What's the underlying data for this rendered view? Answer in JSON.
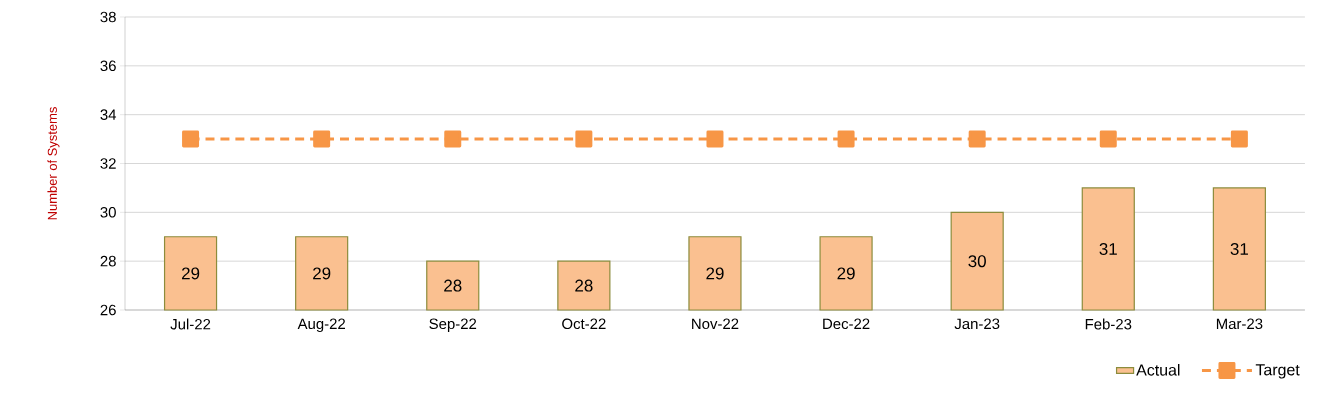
{
  "chart_data": {
    "type": "bar",
    "ylabel": "Number of Systems",
    "categories": [
      "Jul-22",
      "Aug-22",
      "Sep-22",
      "Oct-22",
      "Nov-22",
      "Dec-22",
      "Jan-23",
      "Feb-23",
      "Mar-23"
    ],
    "series": [
      {
        "name": "Actual",
        "color": "#fac090",
        "values": [
          29,
          29,
          28,
          28,
          29,
          29,
          30,
          31,
          31
        ],
        "value_labels": [
          "29",
          "29",
          "28",
          "28",
          "29",
          "29",
          "30",
          "31",
          "31"
        ]
      },
      {
        "name": "Target",
        "type": "line",
        "color": "#f79646",
        "marker": "square",
        "line_style": "dashed",
        "values": [
          33,
          33,
          33,
          33,
          33,
          33,
          33,
          33,
          33
        ]
      }
    ],
    "ylim": [
      26,
      38
    ],
    "yticks": [
      26,
      28,
      30,
      32,
      34,
      36,
      38
    ],
    "grid": "y",
    "legend": "bottom right"
  }
}
